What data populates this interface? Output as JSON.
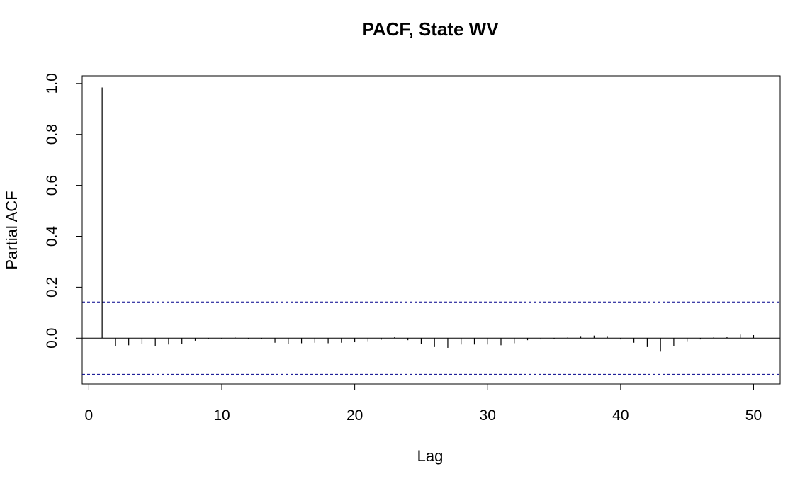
{
  "chart_data": {
    "type": "bar",
    "title": "PACF, State WV",
    "xlabel": "Lag",
    "ylabel": "Partial ACF",
    "xlim": [
      -0.5,
      52
    ],
    "ylim": [
      -0.18,
      1.03
    ],
    "x_ticks": [
      0,
      10,
      20,
      30,
      40,
      50
    ],
    "y_ticks": [
      0.0,
      0.2,
      0.4,
      0.6,
      0.8,
      1.0
    ],
    "x_tick_labels": [
      "0",
      "10",
      "20",
      "30",
      "40",
      "50"
    ],
    "y_tick_labels": [
      "0.0",
      "0.2",
      "0.4",
      "0.6",
      "0.8",
      "1.0"
    ],
    "confidence_bounds": [
      0.142,
      -0.142
    ],
    "confidence_color": "#00008B",
    "lags": [
      1,
      2,
      3,
      4,
      5,
      6,
      7,
      8,
      9,
      10,
      11,
      12,
      13,
      14,
      15,
      16,
      17,
      18,
      19,
      20,
      21,
      22,
      23,
      24,
      25,
      26,
      27,
      28,
      29,
      30,
      31,
      32,
      33,
      34,
      35,
      36,
      37,
      38,
      39,
      40,
      41,
      42,
      43,
      44,
      45,
      46,
      47,
      48,
      49,
      50
    ],
    "values": [
      0.984,
      -0.03,
      -0.028,
      -0.022,
      -0.03,
      -0.025,
      -0.022,
      -0.01,
      -0.003,
      -0.002,
      0.003,
      -0.002,
      -0.004,
      -0.018,
      -0.022,
      -0.02,
      -0.018,
      -0.02,
      -0.018,
      -0.016,
      -0.012,
      -0.006,
      0.006,
      -0.008,
      -0.022,
      -0.035,
      -0.038,
      -0.025,
      -0.025,
      -0.025,
      -0.028,
      -0.02,
      -0.008,
      -0.005,
      -0.003,
      0.002,
      0.008,
      0.01,
      0.008,
      -0.005,
      -0.018,
      -0.035,
      -0.053,
      -0.03,
      -0.012,
      -0.005,
      0.003,
      0.006,
      0.014,
      0.012
    ],
    "grid": false,
    "legend": "none"
  }
}
